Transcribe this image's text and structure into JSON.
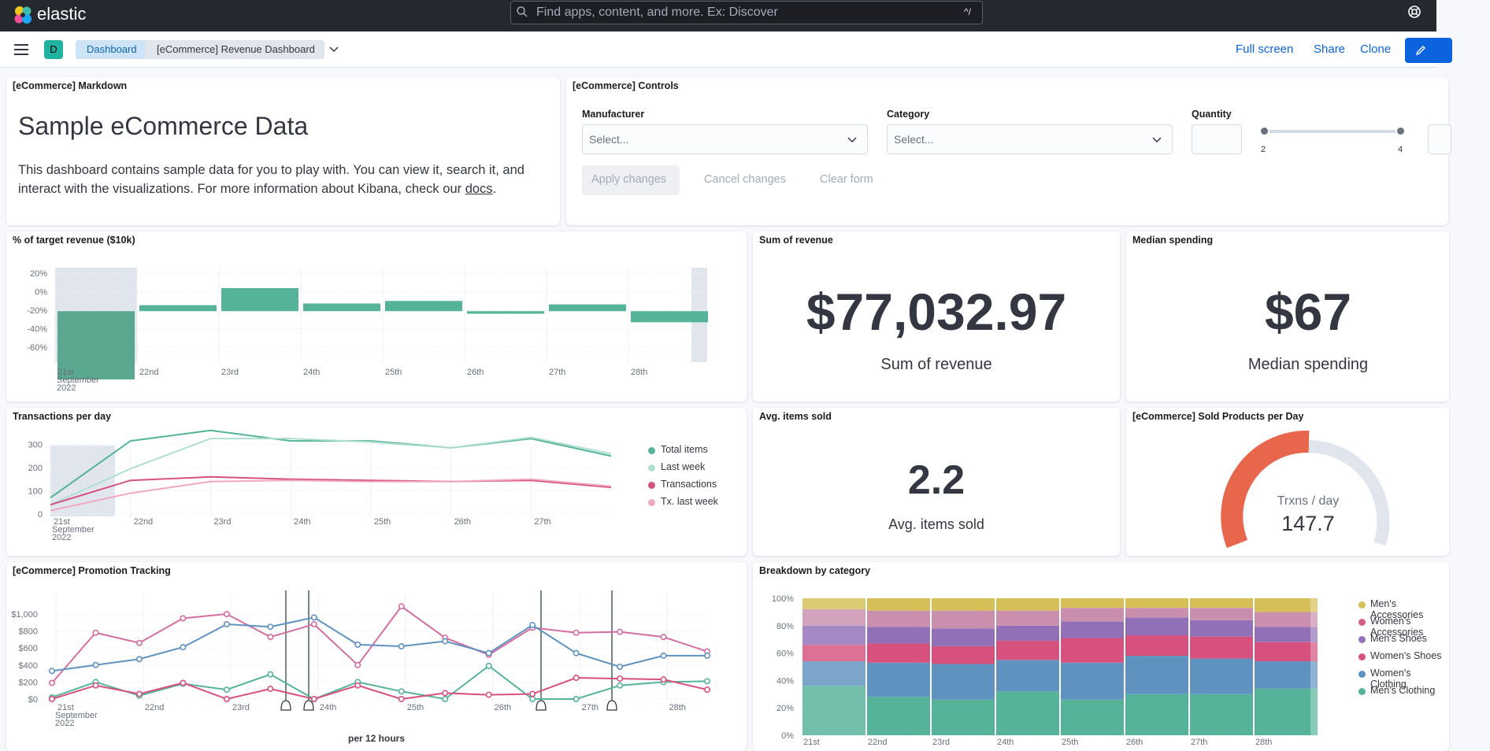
{
  "header": {
    "brand": "elastic",
    "search_placeholder": "Find apps, content, and more. Ex: Discover",
    "shortcut": "^/"
  },
  "nav": {
    "avatar": "D",
    "crumbs": [
      "Dashboard",
      "[eCommerce] Revenue Dashboard"
    ],
    "actions": [
      "Full screen",
      "Share",
      "Clone"
    ]
  },
  "markdown": {
    "title": "[eCommerce] Markdown",
    "heading": "Sample eCommerce Data",
    "text": "This dashboard contains sample data for you to play with. You can view it, search it, and interact with the visualizations. For more information about Kibana, check our ",
    "link": "docs",
    "end": "."
  },
  "controls": {
    "title": "[eCommerce] Controls",
    "manufacturer_label": "Manufacturer",
    "category_label": "Category",
    "quantity_label": "Quantity",
    "select_placeholder": "Select...",
    "quantity_min": "2",
    "quantity_max": "4",
    "apply": "Apply changes",
    "cancel": "Cancel changes",
    "clear": "Clear form"
  },
  "target": {
    "title": "% of target revenue ($10k)",
    "ticks": [
      "20%",
      "0%",
      "-20%",
      "-40%",
      "-60%"
    ],
    "xlabels": [
      "21st",
      "22nd",
      "23rd",
      "24th",
      "25th",
      "26th",
      "27th",
      "28th"
    ],
    "month": "September",
    "year": "2022"
  },
  "sum": {
    "title": "Sum of revenue",
    "value": "$77,032.97",
    "label": "Sum of revenue"
  },
  "median": {
    "title": "Median spending",
    "value": "$67",
    "label": "Median spending"
  },
  "transactions": {
    "title": "Transactions per day",
    "ticks": [
      "300",
      "200",
      "100",
      "0"
    ],
    "xlabels": [
      "21st",
      "22nd",
      "23rd",
      "24th",
      "25th",
      "26th",
      "27th"
    ],
    "month": "September",
    "year": "2022",
    "legend": [
      "Total items",
      "Last week",
      "Transactions",
      "Tx. last week"
    ]
  },
  "avg": {
    "title": "Avg. items sold",
    "value": "2.2",
    "label": "Avg. items sold"
  },
  "sold": {
    "title": "[eCommerce] Sold Products per Day",
    "label": "Trxns / day",
    "value": "147.7"
  },
  "promo": {
    "title": "[eCommerce] Promotion Tracking",
    "ticks": [
      "$1,000",
      "$800",
      "$600",
      "$400",
      "$200",
      "$0"
    ],
    "xlabels": [
      "21st",
      "22nd",
      "23rd",
      "24th",
      "25th",
      "26th",
      "27th",
      "28th"
    ],
    "month": "September",
    "year": "2022",
    "xtitle": "per 12 hours"
  },
  "breakdown": {
    "title": "Breakdown by category",
    "ticks": [
      "100%",
      "80%",
      "60%",
      "40%",
      "20%",
      "0%"
    ],
    "xlabels": [
      "21st",
      "22nd",
      "23rd",
      "24th",
      "25th",
      "26th",
      "27th",
      "28th"
    ],
    "legend": [
      "Men's Accessories",
      "Women's Accessories",
      "Men's Shoes",
      "Women's Shoes",
      "Women's Clothing",
      "Men's Clothing"
    ]
  },
  "colors": {
    "accent": "#0b64dd",
    "teal": "#54b399",
    "gauge": "#e7664c"
  },
  "chart_data": [
    {
      "type": "bar",
      "title": "% of target revenue ($10k)",
      "categories": [
        "21st",
        "22nd",
        "23rd",
        "24th",
        "25th",
        "26th",
        "27th",
        "28th"
      ],
      "values": [
        -80,
        7,
        27,
        9,
        12,
        -3,
        8,
        -13
      ],
      "ylim": [
        -80,
        27
      ]
    },
    {
      "type": "line",
      "title": "Transactions per day",
      "categories": [
        "21st",
        "22nd",
        "23rd",
        "24th",
        "25th",
        "26th",
        "27th",
        "28th"
      ],
      "series": [
        {
          "name": "Total items",
          "values": [
            70,
            315,
            360,
            315,
            315,
            285,
            325,
            250
          ]
        },
        {
          "name": "Last week",
          "values": [
            40,
            195,
            325,
            325,
            310,
            285,
            330,
            260
          ]
        },
        {
          "name": "Transactions",
          "values": [
            40,
            145,
            160,
            150,
            145,
            140,
            145,
            115
          ]
        },
        {
          "name": "Tx. last week",
          "values": [
            15,
            90,
            140,
            145,
            140,
            140,
            150,
            120
          ]
        }
      ]
    },
    {
      "type": "line",
      "title": "[eCommerce] Promotion Tracking",
      "x": [
        "21st",
        "",
        "22nd",
        "",
        "23rd",
        "",
        "24th",
        "",
        "25th",
        "",
        "26th",
        "",
        "27th",
        "",
        "28th",
        ""
      ],
      "series": [
        {
          "values": [
            190,
            780,
            660,
            950,
            1000,
            730,
            880,
            400,
            1090,
            720,
            520,
            840,
            780,
            790,
            730,
            560
          ]
        },
        {
          "values": [
            330,
            400,
            470,
            610,
            880,
            850,
            960,
            640,
            620,
            680,
            540,
            870,
            540,
            380,
            510,
            510
          ]
        },
        {
          "values": [
            20,
            200,
            40,
            180,
            110,
            290,
            0,
            200,
            90,
            0,
            390,
            0,
            0,
            160,
            200,
            210
          ]
        },
        {
          "values": [
            0,
            160,
            60,
            190,
            0,
            120,
            0,
            160,
            0,
            70,
            50,
            60,
            250,
            240,
            230,
            110
          ]
        }
      ],
      "ylim": [
        0,
        1000
      ]
    },
    {
      "type": "bar",
      "title": "Breakdown by category",
      "categories": [
        "21st",
        "22nd",
        "23rd",
        "24th",
        "25th",
        "26th",
        "27th",
        "28th"
      ],
      "series": [
        {
          "name": "Men's Clothing",
          "values": [
            36,
            28,
            26,
            32,
            26,
            30,
            30,
            34
          ]
        },
        {
          "name": "Women's Clothing",
          "values": [
            18,
            25,
            26,
            23,
            27,
            28,
            26,
            20
          ]
        },
        {
          "name": "Women's Shoes",
          "values": [
            12,
            14,
            13,
            14,
            18,
            15,
            16,
            14
          ]
        },
        {
          "name": "Men's Shoes",
          "values": [
            14,
            12,
            13,
            11,
            12,
            13,
            12,
            11
          ]
        },
        {
          "name": "Women's Accessories",
          "values": [
            12,
            12,
            13,
            11,
            10,
            7,
            9,
            11
          ]
        },
        {
          "name": "Men's Accessories",
          "values": [
            8,
            9,
            9,
            9,
            7,
            7,
            7,
            10
          ]
        }
      ]
    }
  ]
}
